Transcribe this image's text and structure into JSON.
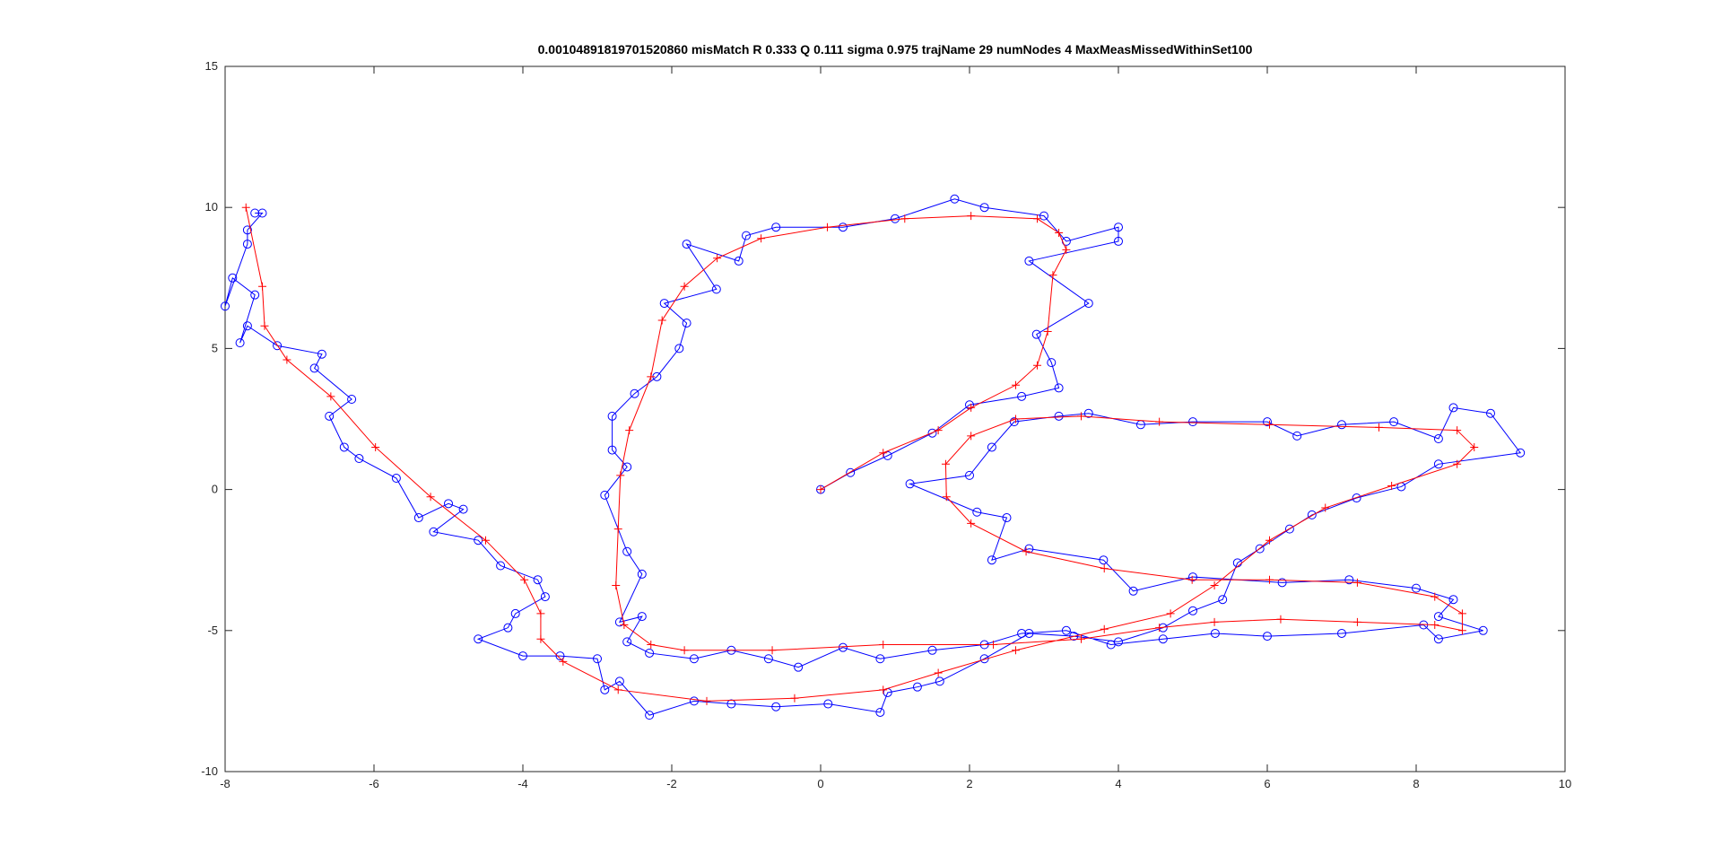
{
  "chart_data": {
    "type": "line",
    "title": "0.0010489181970152086​0 misMatch    R 0.333    Q 0.111     sigma 0.975     trajName 29     numNodes 4     MaxMeasMissedWithinSet100",
    "xlim": [
      -8,
      10
    ],
    "ylim": [
      -10,
      15
    ],
    "xticks": [
      -8,
      -6,
      -4,
      -2,
      0,
      2,
      4,
      6,
      8,
      10
    ],
    "yticks": [
      -10,
      -5,
      0,
      5,
      10,
      15
    ],
    "grid": false,
    "series": [
      {
        "color": "#0000ff",
        "marker": "o",
        "x": [
          -7.6,
          -7.5,
          -7.7,
          -7.7,
          -8.0,
          -7.9,
          -7.6,
          -7.8,
          -7.7,
          -7.3,
          -6.7,
          -6.8,
          -6.3,
          -6.6,
          -6.4,
          -6.2,
          -5.7,
          -5.4,
          -5.0,
          -4.8,
          -5.2,
          -4.6,
          -4.3,
          -3.8,
          -3.7,
          -4.1,
          -4.2,
          -4.6,
          -4.0,
          -3.5,
          -3.0,
          -2.9,
          -2.7,
          -2.3,
          -1.7,
          -1.2,
          -0.6,
          0.1,
          0.8,
          0.9,
          1.3,
          1.6,
          2.2,
          2.8,
          3.4,
          4.0,
          4.6,
          5.0,
          5.4,
          5.6,
          5.9,
          6.3,
          6.6,
          7.2,
          7.8,
          8.3,
          9.4,
          9.0,
          8.5,
          8.3,
          7.7,
          7.0,
          6.4,
          6.0,
          5.0,
          4.3,
          3.6,
          3.2,
          2.6,
          2.3,
          2.0,
          1.2,
          2.1,
          2.5,
          2.3,
          2.8,
          3.8,
          4.2,
          5.0,
          6.2,
          7.1,
          8.0,
          8.5,
          8.3,
          8.9,
          8.3,
          8.1,
          7.0,
          6.0,
          5.3,
          4.6,
          3.9,
          3.3,
          2.7,
          2.2,
          1.5,
          0.8,
          0.3,
          -0.3,
          -0.7,
          -1.2,
          -1.7,
          -2.3,
          -2.6,
          -2.4,
          -2.7,
          -2.4,
          -2.6,
          -2.9,
          -2.6,
          -2.8,
          -2.8,
          -2.5,
          -2.2,
          -1.9,
          -1.8,
          -2.1,
          -1.4,
          -1.8,
          -1.1,
          -1.0,
          -0.6,
          0.3,
          1.0,
          1.8,
          2.2,
          3.0,
          3.3,
          4.0,
          4.0,
          2.8,
          3.6,
          2.9,
          3.1,
          3.2,
          2.7,
          2.0,
          1.5,
          0.9,
          0.4,
          0.0
        ],
        "values": [
          9.8,
          9.8,
          9.2,
          8.7,
          6.5,
          7.5,
          6.9,
          5.2,
          5.8,
          5.1,
          4.8,
          4.3,
          3.2,
          2.6,
          1.5,
          1.1,
          0.4,
          -1.0,
          -0.5,
          -0.7,
          -1.5,
          -1.8,
          -2.7,
          -3.2,
          -3.8,
          -4.4,
          -4.9,
          -5.3,
          -5.9,
          -5.9,
          -6.0,
          -7.1,
          -6.8,
          -8.0,
          -7.5,
          -7.6,
          -7.7,
          -7.6,
          -7.9,
          -7.2,
          -7.0,
          -6.8,
          -6.0,
          -5.1,
          -5.2,
          -5.4,
          -4.9,
          -4.3,
          -3.9,
          -2.6,
          -2.1,
          -1.4,
          -0.9,
          -0.3,
          0.1,
          0.9,
          1.3,
          2.7,
          2.9,
          1.8,
          2.4,
          2.3,
          1.9,
          2.4,
          2.4,
          2.3,
          2.7,
          2.6,
          2.4,
          1.5,
          0.5,
          0.2,
          -0.8,
          -1.0,
          -2.5,
          -2.1,
          -2.5,
          -3.6,
          -3.1,
          -3.3,
          -3.2,
          -3.5,
          -3.9,
          -4.5,
          -5.0,
          -5.3,
          -4.8,
          -5.1,
          -5.2,
          -5.1,
          -5.3,
          -5.5,
          -5.0,
          -5.1,
          -5.5,
          -5.7,
          -6.0,
          -5.6,
          -6.3,
          -6.0,
          -5.7,
          -6.0,
          -5.8,
          -5.4,
          -4.5,
          -4.7,
          -3.0,
          -2.2,
          -0.2,
          0.8,
          1.4,
          2.6,
          3.4,
          4.0,
          5.0,
          5.9,
          6.6,
          7.1,
          8.7,
          8.1,
          9.0,
          9.3,
          9.3,
          9.6,
          10.3,
          10.0,
          9.7,
          8.8,
          9.3,
          8.8,
          8.1,
          6.6,
          5.5,
          4.5,
          3.6,
          3.3,
          3.0,
          2.0,
          1.2,
          0.6,
          0.0
        ]
      },
      {
        "color": "#ff0000",
        "marker": "+",
        "x": [
          -7.72,
          -7.5,
          -7.47,
          -7.17,
          -6.58,
          -5.98,
          -5.24,
          -4.5,
          -3.98,
          -3.76,
          -3.76,
          -3.46,
          -2.72,
          -1.53,
          -0.35,
          0.84,
          1.58,
          2.62,
          3.81,
          4.7,
          5.29,
          6.03,
          6.78,
          7.67,
          8.55,
          8.78,
          8.55,
          7.5,
          6.03,
          4.55,
          3.5,
          2.62,
          2.02,
          1.68,
          1.69,
          2.02,
          2.76,
          3.81,
          4.99,
          6.03,
          7.21,
          8.25,
          8.62,
          8.62,
          8.25,
          7.21,
          6.18,
          5.29,
          4.55,
          3.5,
          2.32,
          0.84,
          -0.65,
          -1.83,
          -2.28,
          -2.64,
          -2.75,
          -2.72,
          -2.69,
          -2.57,
          -2.28,
          -2.13,
          -1.83,
          -1.39,
          -0.8,
          0.09,
          1.13,
          2.02,
          2.91,
          3.2,
          3.3,
          3.12,
          3.05,
          2.91,
          2.62,
          2.02,
          1.58,
          0.84,
          0.0
        ],
        "values": [
          10.0,
          7.2,
          5.8,
          4.6,
          3.3,
          1.5,
          -0.26,
          -1.8,
          -3.2,
          -4.4,
          -5.3,
          -6.1,
          -7.1,
          -7.5,
          -7.4,
          -7.1,
          -6.5,
          -5.7,
          -4.95,
          -4.4,
          -3.4,
          -1.8,
          -0.65,
          0.13,
          0.9,
          1.5,
          2.1,
          2.2,
          2.3,
          2.4,
          2.6,
          2.5,
          1.9,
          0.9,
          -0.26,
          -1.2,
          -2.2,
          -2.8,
          -3.2,
          -3.2,
          -3.3,
          -3.8,
          -4.4,
          -5.0,
          -4.8,
          -4.7,
          -4.6,
          -4.7,
          -4.9,
          -5.3,
          -5.5,
          -5.5,
          -5.7,
          -5.7,
          -5.5,
          -4.8,
          -3.4,
          -1.4,
          0.5,
          2.1,
          4.0,
          6.0,
          7.2,
          8.2,
          8.9,
          9.3,
          9.6,
          9.7,
          9.6,
          9.1,
          8.5,
          7.6,
          5.6,
          4.4,
          3.7,
          2.9,
          2.1,
          1.3,
          0.0
        ]
      }
    ]
  }
}
